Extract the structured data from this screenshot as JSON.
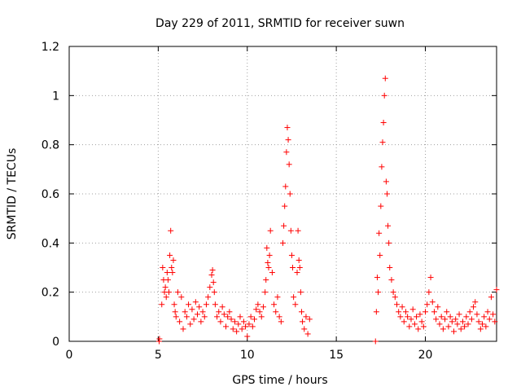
{
  "chart_data": {
    "type": "scatter",
    "title": "Day 229 of 2011, SRMTID for receiver suwn",
    "xlabel": "GPS time / hours",
    "ylabel": "SRMTID / TECUs",
    "xlim": [
      0,
      24
    ],
    "ylim": [
      0,
      1.2
    ],
    "xticks": [
      0,
      5,
      10,
      15,
      20
    ],
    "xtick_labels": [
      "0",
      "5",
      "10",
      "15",
      "20"
    ],
    "yticks": [
      0,
      0.2,
      0.4,
      0.6,
      0.8,
      1,
      1.2
    ],
    "ytick_labels": [
      "0",
      "0.2",
      "0.4",
      "0.6",
      "0.8",
      "1",
      "1.2"
    ],
    "grid": true,
    "marker": "+",
    "series": [
      {
        "name": "SRMTID",
        "color": "#ff0000",
        "x": [
          5.05,
          5.07,
          5.2,
          5.25,
          5.3,
          5.35,
          5.4,
          5.45,
          5.5,
          5.55,
          5.6,
          5.65,
          5.7,
          5.75,
          5.8,
          5.85,
          5.9,
          5.95,
          6.0,
          6.1,
          6.2,
          6.3,
          6.4,
          6.5,
          6.6,
          6.7,
          6.8,
          6.9,
          7.0,
          7.1,
          7.2,
          7.3,
          7.4,
          7.5,
          7.6,
          7.7,
          7.8,
          7.9,
          8.0,
          8.05,
          8.1,
          8.15,
          8.2,
          8.3,
          8.4,
          8.5,
          8.6,
          8.7,
          8.8,
          8.9,
          9.0,
          9.1,
          9.2,
          9.3,
          9.4,
          9.5,
          9.6,
          9.7,
          9.8,
          9.9,
          10.0,
          10.1,
          10.2,
          10.3,
          10.4,
          10.5,
          10.6,
          10.7,
          10.8,
          10.9,
          11.0,
          11.05,
          11.1,
          11.15,
          11.2,
          11.25,
          11.3,
          11.4,
          11.5,
          11.6,
          11.7,
          11.8,
          11.9,
          12.0,
          12.05,
          12.1,
          12.15,
          12.2,
          12.25,
          12.3,
          12.35,
          12.4,
          12.45,
          12.5,
          12.55,
          12.6,
          12.7,
          12.8,
          12.85,
          12.9,
          12.95,
          13.0,
          13.05,
          13.1,
          13.2,
          13.3,
          13.4,
          13.5,
          17.2,
          17.25,
          17.3,
          17.35,
          17.4,
          17.45,
          17.5,
          17.55,
          17.6,
          17.65,
          17.7,
          17.75,
          17.8,
          17.85,
          17.9,
          17.95,
          18.0,
          18.1,
          18.2,
          18.3,
          18.4,
          18.5,
          18.6,
          18.7,
          18.8,
          18.9,
          19.0,
          19.1,
          19.2,
          19.3,
          19.4,
          19.5,
          19.6,
          19.7,
          19.8,
          19.9,
          20.0,
          20.1,
          20.2,
          20.3,
          20.4,
          20.5,
          20.6,
          20.7,
          20.8,
          20.9,
          21.0,
          21.1,
          21.2,
          21.3,
          21.4,
          21.5,
          21.6,
          21.7,
          21.8,
          21.9,
          22.0,
          22.1,
          22.2,
          22.3,
          22.4,
          22.5,
          22.6,
          22.7,
          22.8,
          22.9,
          23.0,
          23.1,
          23.2,
          23.3,
          23.4,
          23.5,
          23.6,
          23.7,
          23.8,
          23.9,
          24.0
        ],
        "y": [
          0.0,
          0.01,
          0.15,
          0.3,
          0.25,
          0.2,
          0.22,
          0.18,
          0.28,
          0.25,
          0.2,
          0.35,
          0.45,
          0.3,
          0.28,
          0.33,
          0.15,
          0.12,
          0.1,
          0.2,
          0.08,
          0.18,
          0.05,
          0.12,
          0.1,
          0.15,
          0.07,
          0.13,
          0.09,
          0.16,
          0.11,
          0.14,
          0.08,
          0.12,
          0.1,
          0.15,
          0.18,
          0.22,
          0.27,
          0.29,
          0.24,
          0.2,
          0.15,
          0.1,
          0.12,
          0.08,
          0.14,
          0.11,
          0.06,
          0.1,
          0.12,
          0.09,
          0.05,
          0.08,
          0.04,
          0.07,
          0.1,
          0.05,
          0.08,
          0.06,
          0.02,
          0.07,
          0.1,
          0.06,
          0.09,
          0.13,
          0.15,
          0.12,
          0.1,
          0.14,
          0.2,
          0.25,
          0.38,
          0.32,
          0.3,
          0.35,
          0.45,
          0.28,
          0.15,
          0.12,
          0.18,
          0.1,
          0.08,
          0.4,
          0.47,
          0.55,
          0.63,
          0.77,
          0.87,
          0.82,
          0.72,
          0.6,
          0.45,
          0.35,
          0.3,
          0.18,
          0.15,
          0.28,
          0.45,
          0.33,
          0.3,
          0.2,
          0.12,
          0.08,
          0.05,
          0.1,
          0.03,
          0.09,
          0.0,
          0.12,
          0.26,
          0.2,
          0.44,
          0.35,
          0.55,
          0.71,
          0.81,
          0.89,
          1.0,
          1.07,
          0.65,
          0.6,
          0.47,
          0.4,
          0.3,
          0.25,
          0.2,
          0.18,
          0.15,
          0.12,
          0.1,
          0.14,
          0.08,
          0.12,
          0.1,
          0.06,
          0.09,
          0.13,
          0.07,
          0.1,
          0.05,
          0.11,
          0.08,
          0.06,
          0.12,
          0.15,
          0.2,
          0.26,
          0.16,
          0.12,
          0.09,
          0.14,
          0.07,
          0.1,
          0.05,
          0.09,
          0.12,
          0.06,
          0.1,
          0.08,
          0.04,
          0.09,
          0.07,
          0.11,
          0.05,
          0.08,
          0.06,
          0.1,
          0.07,
          0.12,
          0.09,
          0.14,
          0.16,
          0.11,
          0.08,
          0.05,
          0.07,
          0.1,
          0.06,
          0.12,
          0.09,
          0.18,
          0.11,
          0.08,
          0.21
        ]
      }
    ]
  }
}
